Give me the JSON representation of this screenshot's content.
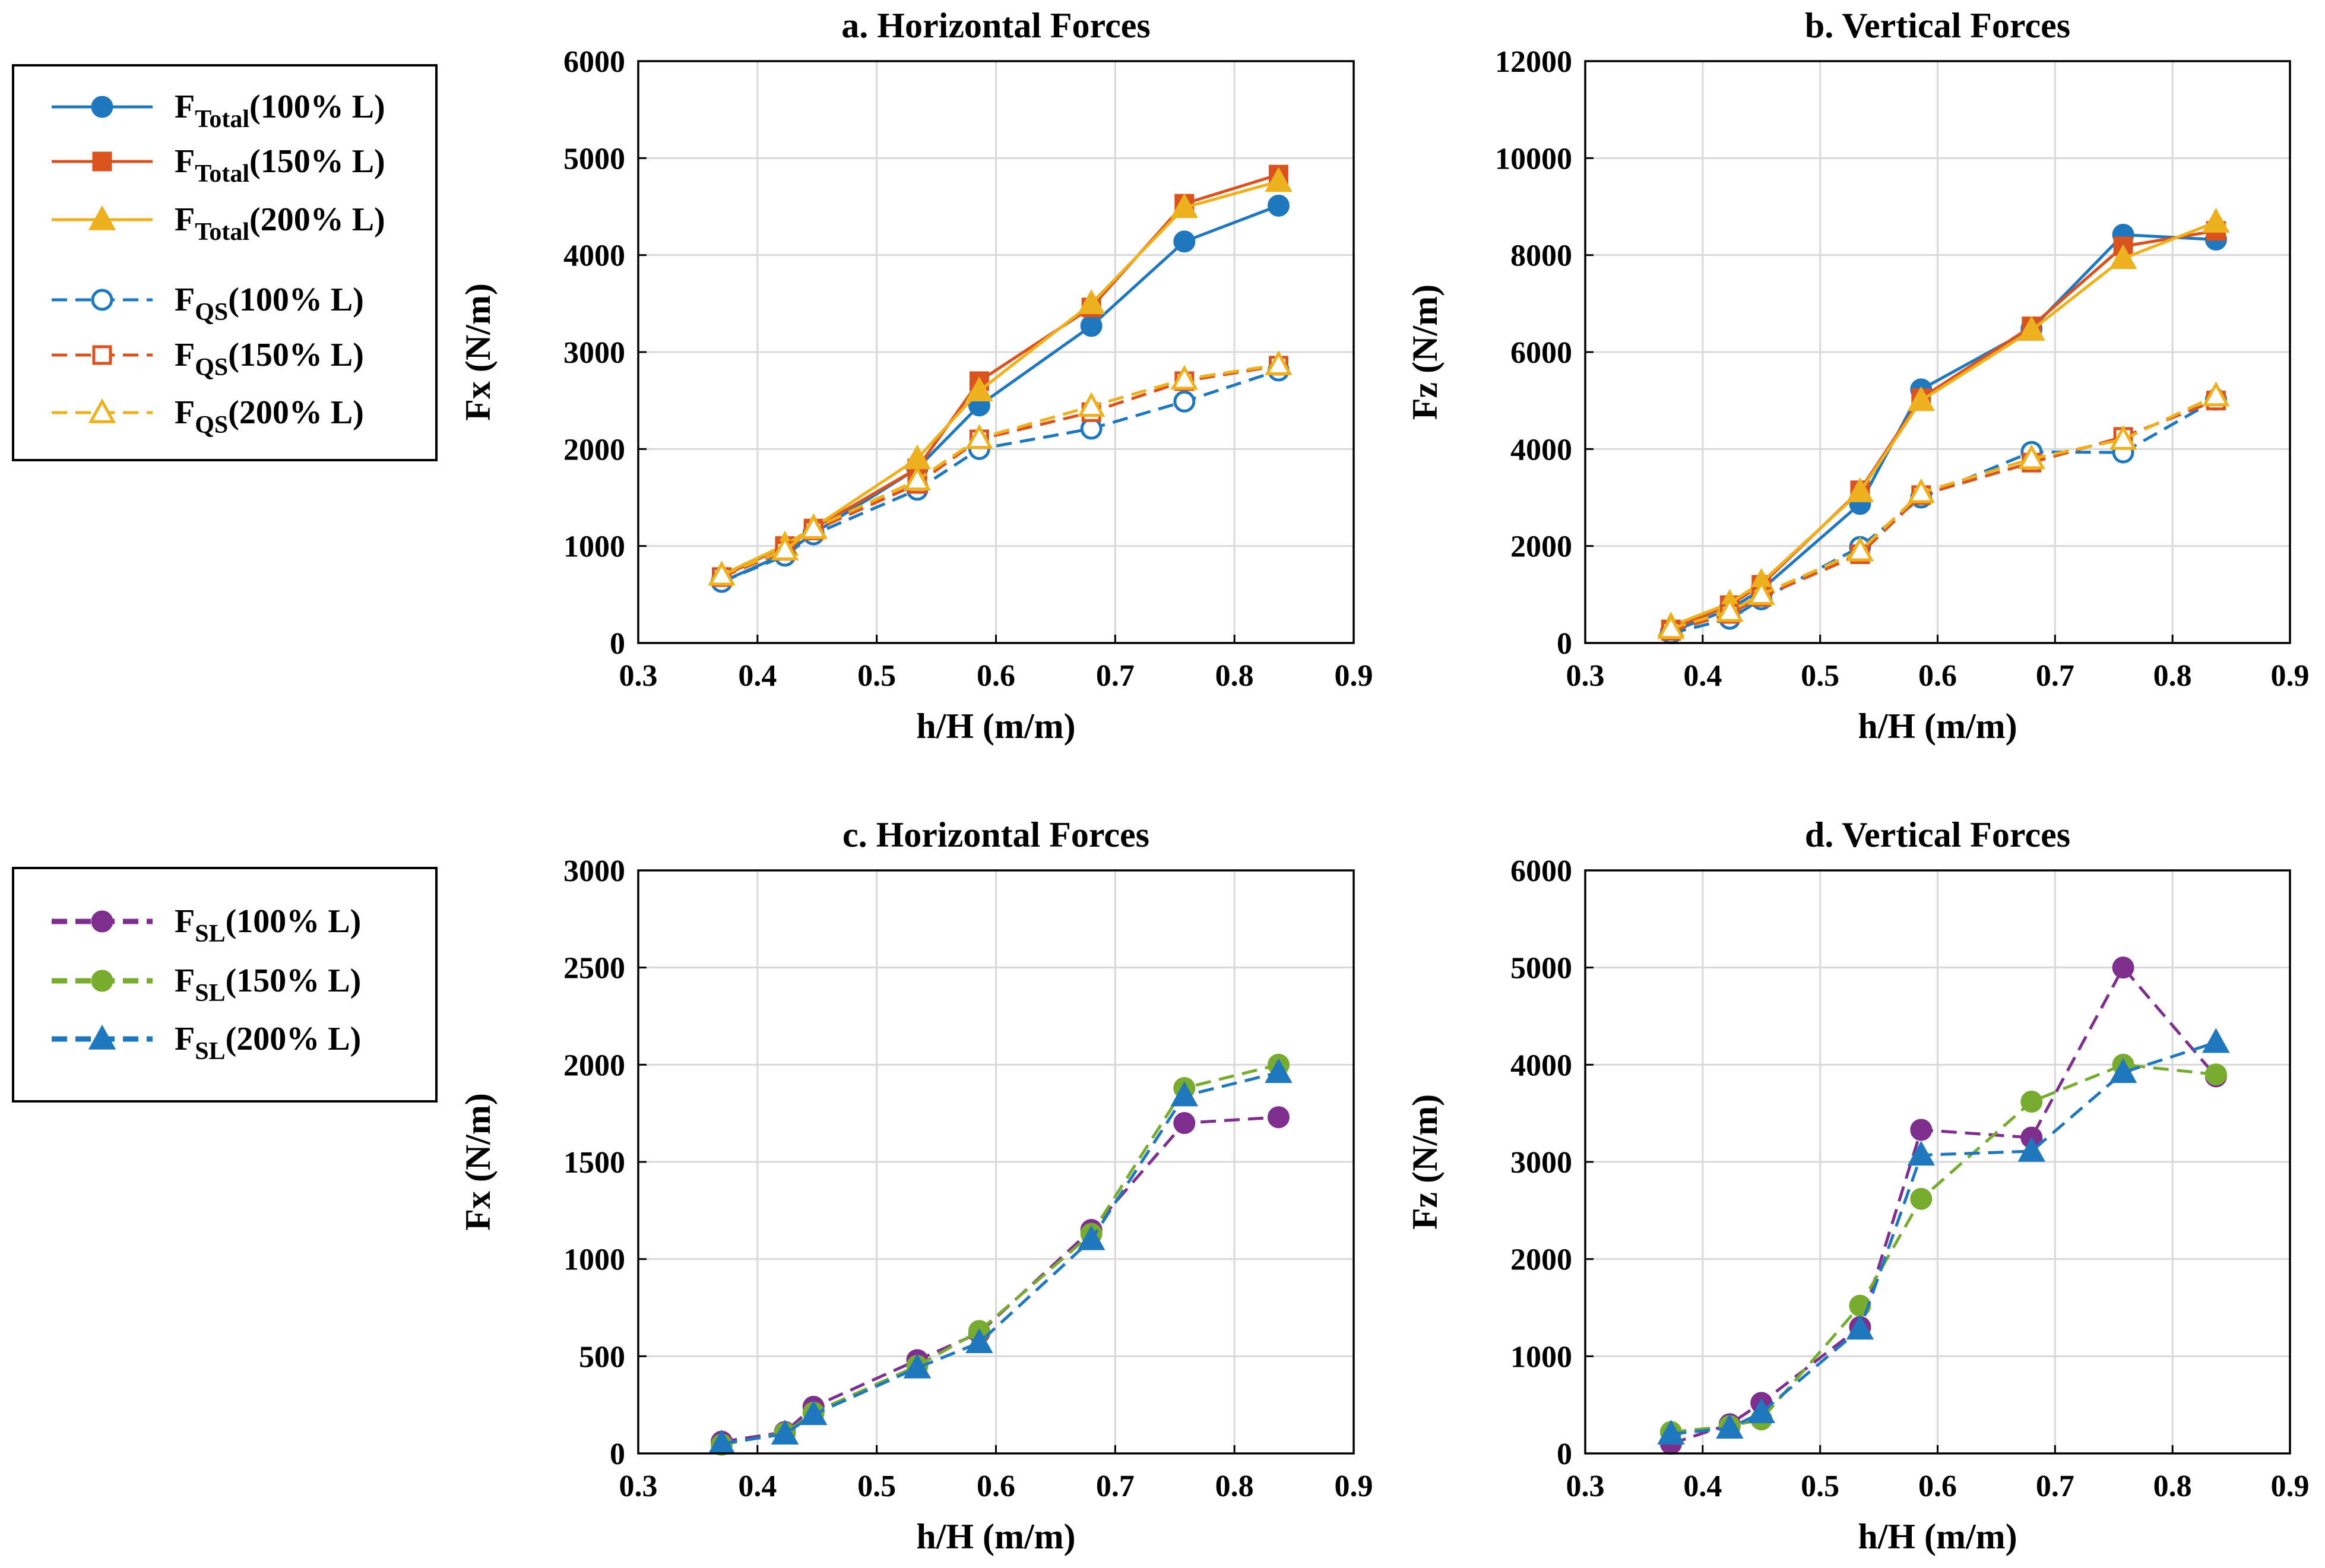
{
  "colors": {
    "blue": "#1f77bd",
    "orange": "#d9531e",
    "yellow": "#edb120",
    "purple": "#7e2f8e",
    "green": "#77ac30",
    "grid": "#d9d9d9",
    "axis": "#000000"
  },
  "legend_top": {
    "entries": [
      {
        "base": "F",
        "sub": "Total",
        "tail": "(100% L)",
        "series_ref": "total_100"
      },
      {
        "base": "F",
        "sub": "Total",
        "tail": "(150% L)",
        "series_ref": "total_150"
      },
      {
        "base": "F",
        "sub": "Total",
        "tail": "(200% L)",
        "series_ref": "total_200"
      },
      {
        "base": "F",
        "sub": "QS",
        "tail": "(100% L)",
        "series_ref": "qs_100"
      },
      {
        "base": "F",
        "sub": "QS",
        "tail": "(150% L)",
        "series_ref": "qs_150"
      },
      {
        "base": "F",
        "sub": "QS",
        "tail": "(200% L)",
        "series_ref": "qs_200"
      }
    ]
  },
  "legend_bottom": {
    "entries": [
      {
        "base": "F",
        "sub": "SL",
        "tail": "(100% L)",
        "series_ref": "sl_100"
      },
      {
        "base": "F",
        "sub": "SL",
        "tail": "(150% L)",
        "series_ref": "sl_150"
      },
      {
        "base": "F",
        "sub": "SL",
        "tail": "(200% L)",
        "series_ref": "sl_200"
      }
    ]
  },
  "chart_data": [
    {
      "id": "a",
      "type": "line",
      "title": "a. Horizontal Forces",
      "xlabel": "h/H (m/m)",
      "ylabel": "Fx (N/m)",
      "xlim": [
        0.3,
        0.9
      ],
      "ylim": [
        0,
        6000
      ],
      "xticks": [
        0.3,
        0.4,
        0.5,
        0.6,
        0.7,
        0.8,
        0.9
      ],
      "yticks": [
        0,
        1000,
        2000,
        3000,
        4000,
        5000,
        6000
      ],
      "grid": true,
      "x": [
        0.37,
        0.423,
        0.447,
        0.534,
        0.586,
        0.68,
        0.758,
        0.837
      ],
      "series": [
        {
          "key": "total_100",
          "name": "F_Total(100% L)",
          "color": "blue",
          "marker": "circle",
          "filled": true,
          "dashed": false,
          "values": [
            630,
            920,
            1130,
            1800,
            2450,
            3270,
            4140,
            4510
          ]
        },
        {
          "key": "total_150",
          "name": "F_Total(150% L)",
          "color": "orange",
          "marker": "square",
          "filled": true,
          "dashed": false,
          "values": [
            680,
            1000,
            1180,
            1800,
            2700,
            3460,
            4530,
            4830
          ]
        },
        {
          "key": "total_200",
          "name": "F_Total(200% L)",
          "color": "yellow",
          "marker": "triangle",
          "filled": true,
          "dashed": false,
          "values": [
            700,
            1010,
            1190,
            1900,
            2600,
            3500,
            4490,
            4760
          ]
        },
        {
          "key": "qs_100",
          "name": "F_QS(100% L)",
          "color": "blue",
          "marker": "circle",
          "filled": false,
          "dashed": true,
          "values": [
            630,
            900,
            1120,
            1580,
            2000,
            2210,
            2490,
            2810
          ]
        },
        {
          "key": "qs_150",
          "name": "F_QS(150% L)",
          "color": "orange",
          "marker": "square",
          "filled": false,
          "dashed": true,
          "values": [
            680,
            950,
            1160,
            1640,
            2100,
            2380,
            2700,
            2860
          ]
        },
        {
          "key": "qs_200",
          "name": "F_QS(200% L)",
          "color": "yellow",
          "marker": "triangle",
          "filled": false,
          "dashed": true,
          "values": [
            700,
            960,
            1180,
            1680,
            2110,
            2440,
            2720,
            2870
          ]
        }
      ]
    },
    {
      "id": "b",
      "type": "line",
      "title": "b. Vertical Forces",
      "xlabel": "h/H (m/m)",
      "ylabel": "Fz (N/m)",
      "xlim": [
        0.3,
        0.9
      ],
      "ylim": [
        0,
        12000
      ],
      "xticks": [
        0.3,
        0.4,
        0.5,
        0.6,
        0.7,
        0.8,
        0.9
      ],
      "yticks": [
        0,
        2000,
        4000,
        6000,
        8000,
        10000,
        12000
      ],
      "grid": true,
      "x": [
        0.373,
        0.423,
        0.45,
        0.534,
        0.586,
        0.68,
        0.758,
        0.837
      ],
      "series": [
        {
          "key": "total_100",
          "name": "F_Total(100% L)",
          "color": "blue",
          "marker": "circle",
          "filled": true,
          "dashed": false,
          "values": [
            230,
            700,
            1100,
            2870,
            5230,
            6480,
            8420,
            8320
          ]
        },
        {
          "key": "total_150",
          "name": "F_Total(150% L)",
          "color": "orange",
          "marker": "square",
          "filled": true,
          "dashed": false,
          "values": [
            280,
            780,
            1200,
            3150,
            5050,
            6530,
            8180,
            8500
          ]
        },
        {
          "key": "total_200",
          "name": "F_Total(200% L)",
          "color": "yellow",
          "marker": "triangle",
          "filled": true,
          "dashed": false,
          "values": [
            350,
            820,
            1250,
            3120,
            5000,
            6450,
            7930,
            8680
          ]
        },
        {
          "key": "qs_100",
          "name": "F_QS(100% L)",
          "color": "blue",
          "marker": "circle",
          "filled": false,
          "dashed": true,
          "values": [
            200,
            500,
            900,
            1980,
            3000,
            3940,
            3930,
            5020
          ]
        },
        {
          "key": "qs_150",
          "name": "F_QS(150% L)",
          "color": "orange",
          "marker": "square",
          "filled": false,
          "dashed": true,
          "values": [
            250,
            600,
            950,
            1830,
            3050,
            3720,
            4250,
            5000
          ]
        },
        {
          "key": "qs_200",
          "name": "F_QS(200% L)",
          "color": "yellow",
          "marker": "triangle",
          "filled": false,
          "dashed": true,
          "values": [
            300,
            650,
            1000,
            1900,
            3100,
            3800,
            4200,
            5100
          ]
        }
      ]
    },
    {
      "id": "c",
      "type": "line",
      "title": "c. Horizontal Forces",
      "xlabel": "h/H (m/m)",
      "ylabel": "Fx (N/m)",
      "xlim": [
        0.3,
        0.9
      ],
      "ylim": [
        0,
        3000
      ],
      "xticks": [
        0.3,
        0.4,
        0.5,
        0.6,
        0.7,
        0.8,
        0.9
      ],
      "yticks": [
        0,
        500,
        1000,
        1500,
        2000,
        2500,
        3000
      ],
      "grid": true,
      "x": [
        0.37,
        0.423,
        0.447,
        0.534,
        0.586,
        0.68,
        0.758,
        0.837
      ],
      "series": [
        {
          "key": "sl_100",
          "name": "F_SL(100% L)",
          "color": "purple",
          "marker": "circle",
          "filled": true,
          "dashed": true,
          "values": [
            60,
            110,
            240,
            480,
            620,
            1150,
            1700,
            1730
          ]
        },
        {
          "key": "sl_150",
          "name": "F_SL(150% L)",
          "color": "green",
          "marker": "circle",
          "filled": true,
          "dashed": true,
          "values": [
            45,
            105,
            210,
            450,
            630,
            1130,
            1880,
            2000
          ]
        },
        {
          "key": "sl_200",
          "name": "F_SL(200% L)",
          "color": "blue",
          "marker": "triangle",
          "filled": true,
          "dashed": true,
          "values": [
            50,
            100,
            200,
            440,
            570,
            1100,
            1840,
            1960
          ]
        }
      ]
    },
    {
      "id": "d",
      "type": "line",
      "title": "d. Vertical Forces",
      "xlabel": "h/H (m/m)",
      "ylabel": "Fz (N/m)",
      "xlim": [
        0.3,
        0.9
      ],
      "ylim": [
        0,
        6000
      ],
      "xticks": [
        0.3,
        0.4,
        0.5,
        0.6,
        0.7,
        0.8,
        0.9
      ],
      "yticks": [
        0,
        1000,
        2000,
        3000,
        4000,
        5000,
        6000
      ],
      "grid": true,
      "x": [
        0.373,
        0.423,
        0.45,
        0.534,
        0.586,
        0.68,
        0.758,
        0.837
      ],
      "series": [
        {
          "key": "sl_100",
          "name": "F_SL(100% L)",
          "color": "purple",
          "marker": "circle",
          "filled": true,
          "dashed": true,
          "values": [
            100,
            300,
            520,
            1300,
            3330,
            3250,
            5000,
            3880
          ]
        },
        {
          "key": "sl_150",
          "name": "F_SL(150% L)",
          "color": "green",
          "marker": "circle",
          "filled": true,
          "dashed": true,
          "values": [
            220,
            280,
            350,
            1520,
            2620,
            3620,
            4000,
            3900
          ]
        },
        {
          "key": "sl_200",
          "name": "F_SL(200% L)",
          "color": "blue",
          "marker": "triangle",
          "filled": true,
          "dashed": true,
          "values": [
            200,
            260,
            420,
            1280,
            3070,
            3110,
            3920,
            4230
          ]
        }
      ]
    }
  ]
}
